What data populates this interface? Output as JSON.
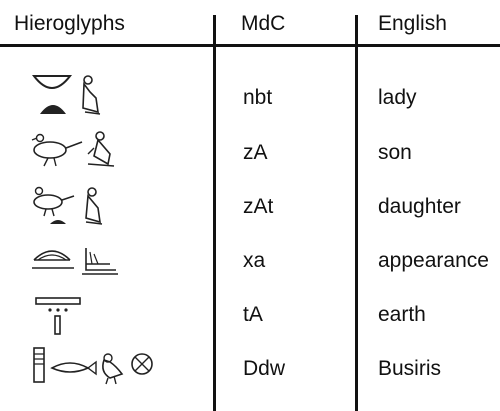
{
  "headers": {
    "hieroglyphs": "Hieroglyphs",
    "mdc": "MdC",
    "english": "English"
  },
  "rows": [
    {
      "glyph_icon": "bowl-and-seated-woman-icon",
      "mdc": "nbt",
      "english": "lady"
    },
    {
      "glyph_icon": "pintail-duck-and-seated-man-icon",
      "mdc": "zA",
      "english": "son"
    },
    {
      "glyph_icon": "pintail-duck-bread-and-seated-woman-icon",
      "mdc": "zAt",
      "english": "daughter"
    },
    {
      "glyph_icon": "sunrise-over-hill-and-stairs-icon",
      "mdc": "xa",
      "english": "appearance"
    },
    {
      "glyph_icon": "strip-of-land-with-grains-icon",
      "mdc": "tA",
      "english": "earth"
    },
    {
      "glyph_icon": "djed-pillar-fish-bird-and-city-icon",
      "mdc": "Ddw",
      "english": "Busiris"
    }
  ]
}
